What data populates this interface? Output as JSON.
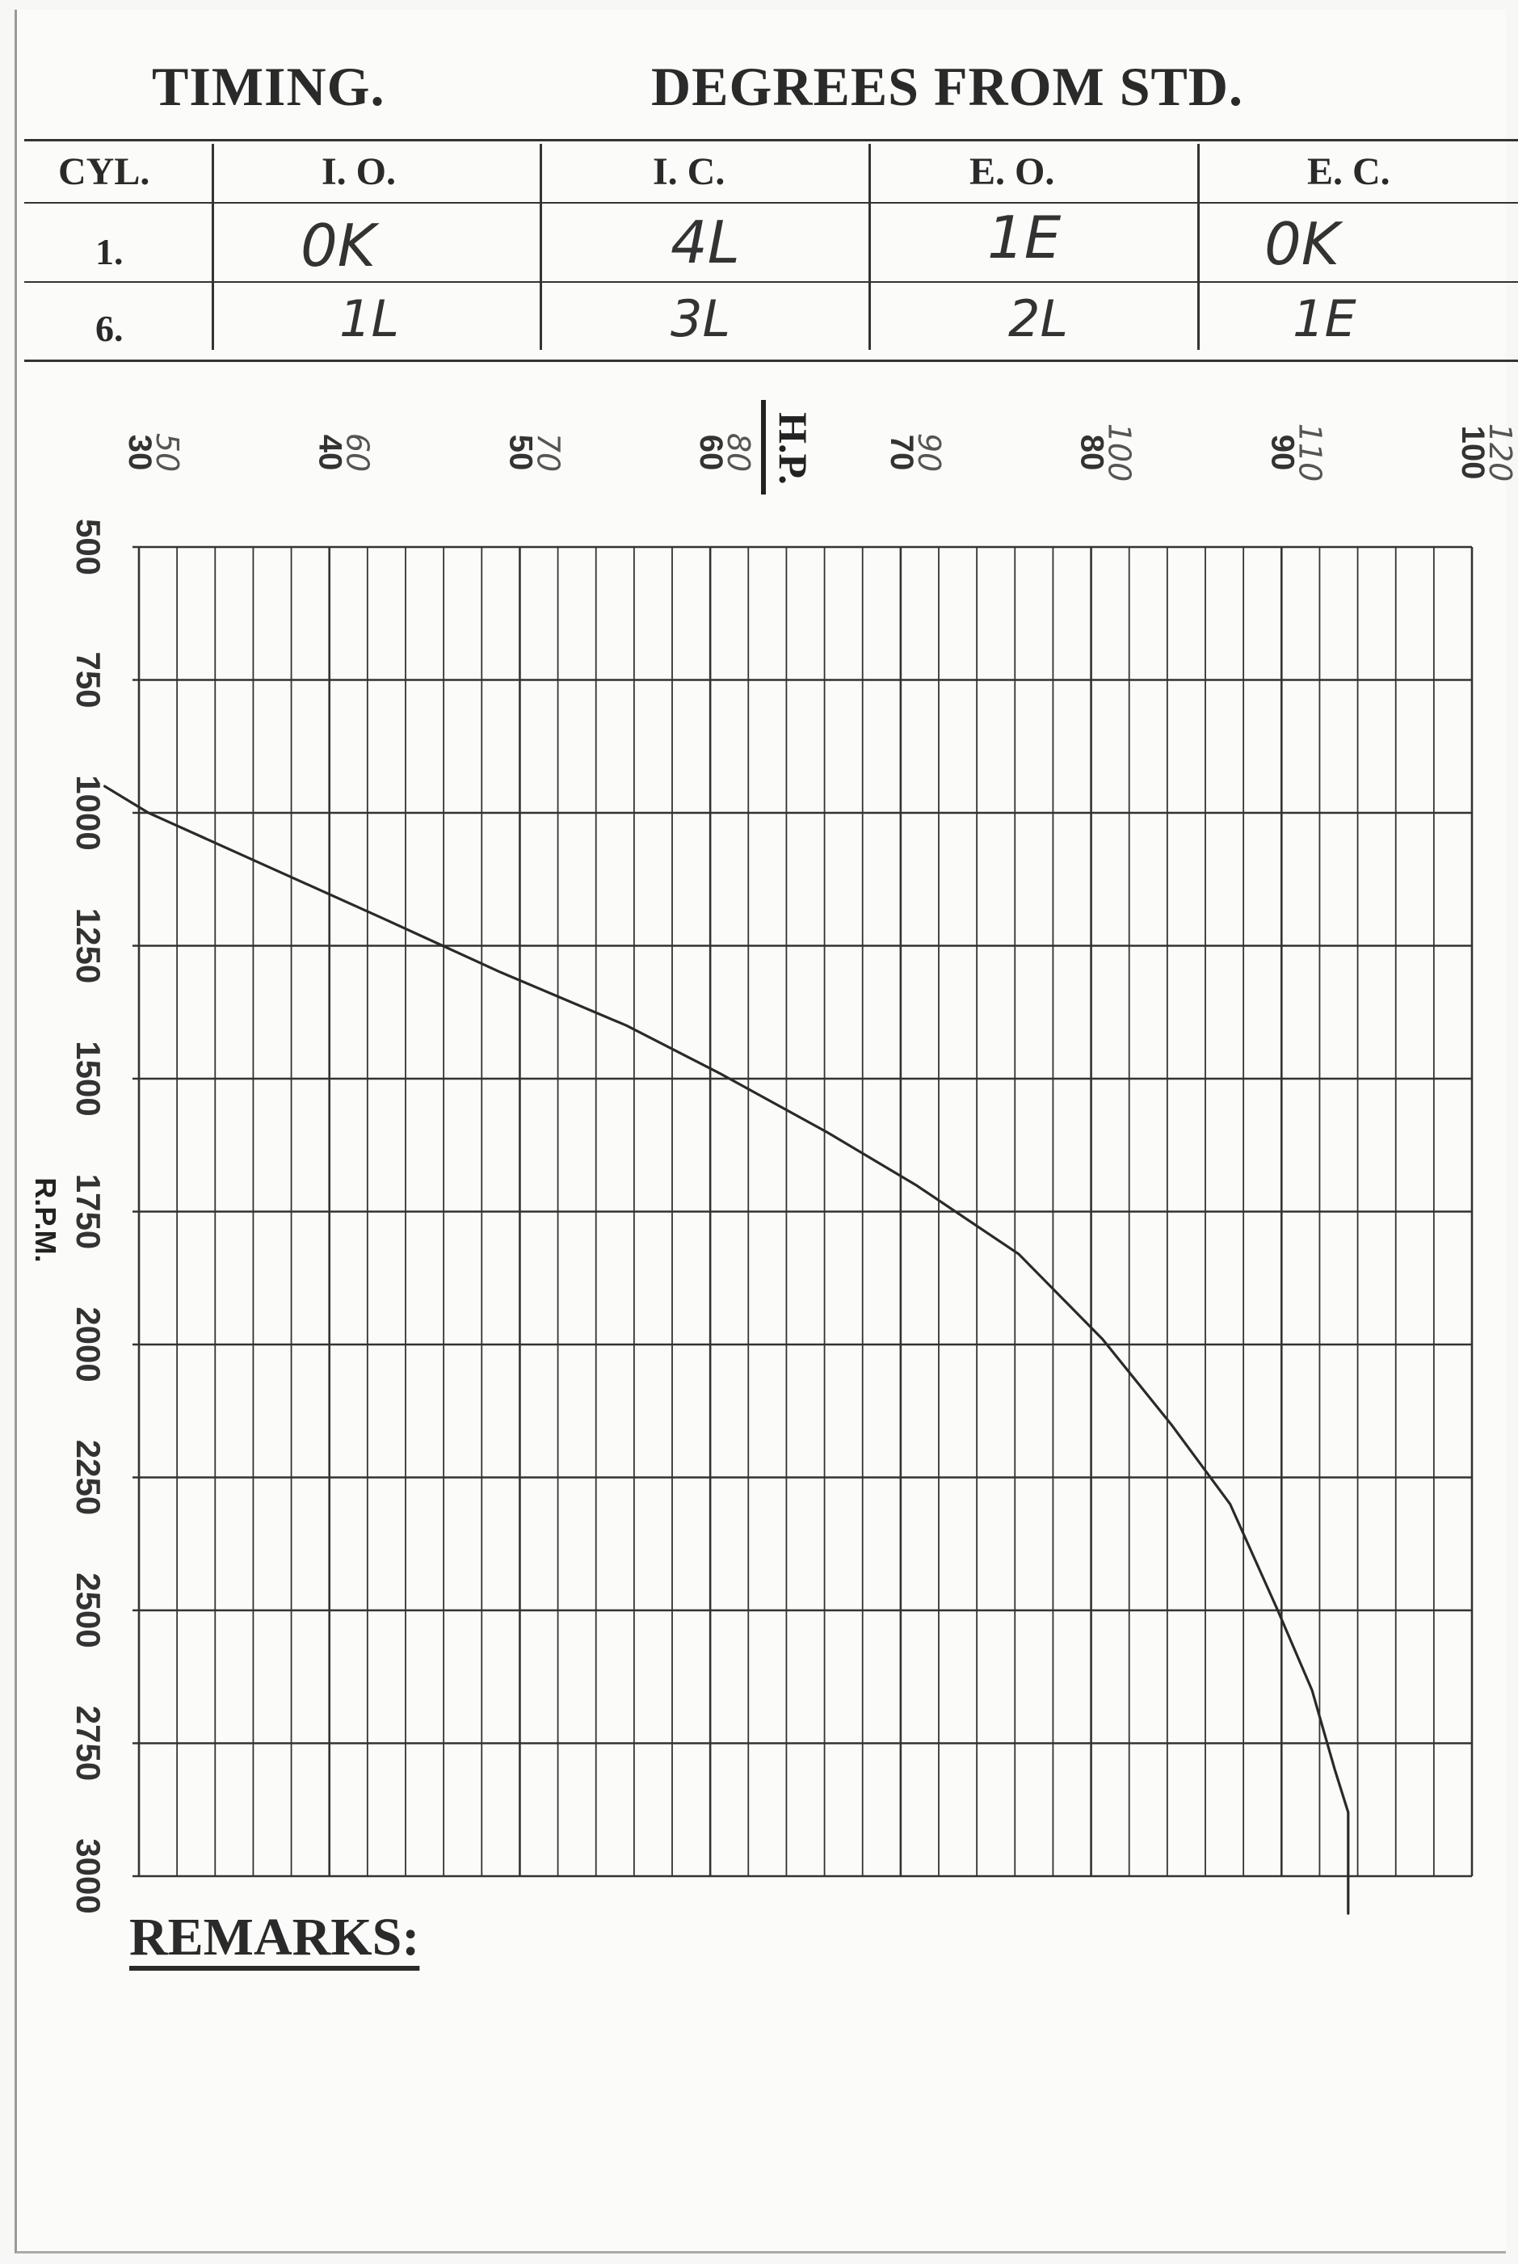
{
  "header": {
    "timing_label": "TIMING.",
    "degrees_label": "DEGREES FROM STD."
  },
  "timing_table": {
    "columns": [
      "CYL.",
      "I. O.",
      "I. C.",
      "E. O.",
      "E. C."
    ],
    "rows": [
      {
        "cyl": "1.",
        "io": "0K",
        "ic": "4L",
        "eo": "1E",
        "ec": "0K"
      },
      {
        "cyl": "6.",
        "io": "1L",
        "ic": "3L",
        "eo": "2L",
        "ec": "1E"
      }
    ]
  },
  "chart_data": {
    "type": "line",
    "title": "",
    "xlabel": "H.P.",
    "ylabel": "R.P.M.",
    "x_ticks": [
      "30",
      "40",
      "50",
      "60",
      "70",
      "80",
      "90",
      "100"
    ],
    "x_ticks_handwritten": [
      "50",
      "60",
      "70",
      "80",
      "90",
      "100",
      "110",
      "120"
    ],
    "y_ticks": [
      "500",
      "750",
      "1000",
      "1250",
      "1500",
      "1750",
      "2000",
      "2250",
      "2500",
      "2750",
      "3000"
    ],
    "xlim": [
      30,
      100
    ],
    "ylim": [
      500,
      3000
    ],
    "y_inverted": true,
    "grid": true,
    "series": [
      {
        "x": [
          28.2,
          30.5,
          36.7,
          42.9,
          49.0,
          55.6,
          60.5,
          66.1,
          70.8,
          76.2,
          80.6,
          84.2,
          87.3,
          89.8,
          91.6,
          92.8,
          93.5,
          93.5
        ],
        "y": [
          950,
          1000,
          1100,
          1200,
          1300,
          1400,
          1490,
          1600,
          1700,
          1830,
          1990,
          2150,
          2300,
          2500,
          2650,
          2800,
          2880,
          3070
        ]
      }
    ]
  },
  "remarks": {
    "label": "REMARKS:"
  }
}
